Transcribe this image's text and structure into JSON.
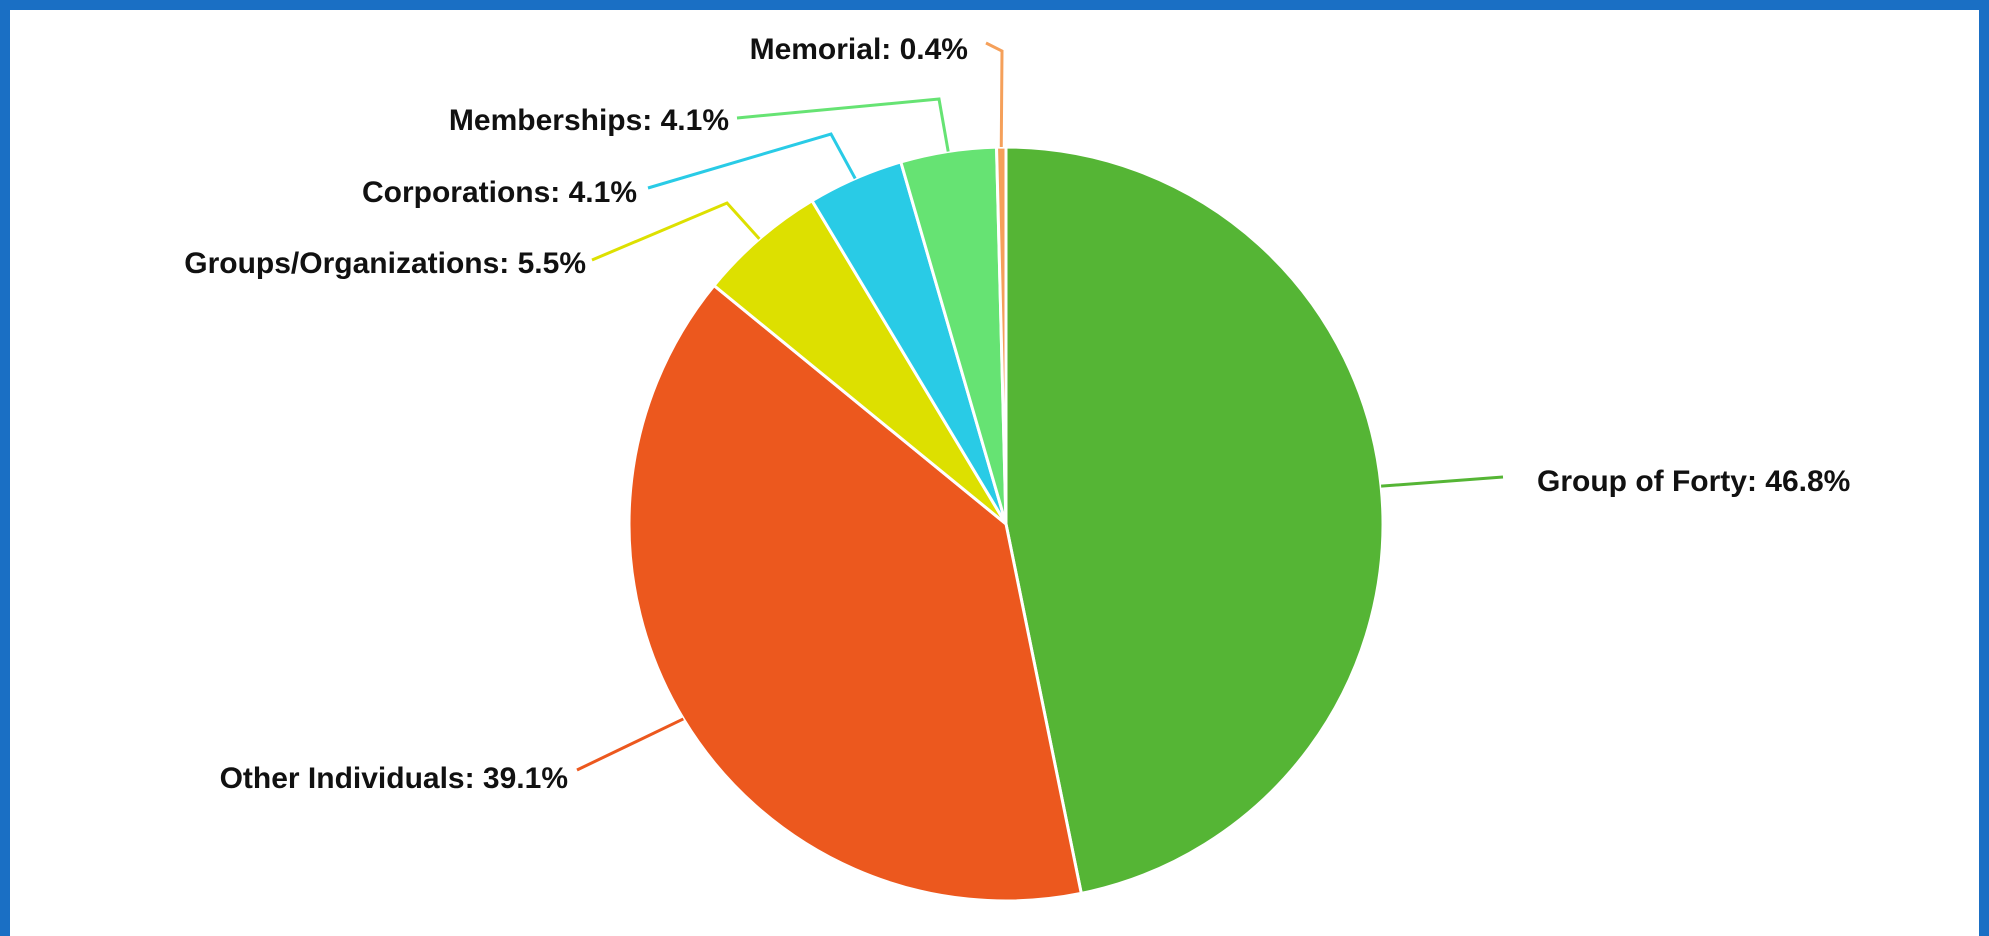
{
  "chart_data": {
    "type": "pie",
    "values": [
      46.8,
      39.1,
      5.5,
      4.1,
      4.1,
      0.4
    ],
    "value_labels": [
      "Group of Forty: 46.8%",
      "Other Individuals: 39.1%",
      "Groups/Organizations: 5.5%",
      "Corporations: 4.1%",
      "Memberships: 4.1%",
      "Memorial: 0.4%"
    ],
    "colors": [
      "#55b535",
      "#ec581e",
      "#dde000",
      "#29cbe6",
      "#66e373",
      "#f5a05a"
    ]
  }
}
